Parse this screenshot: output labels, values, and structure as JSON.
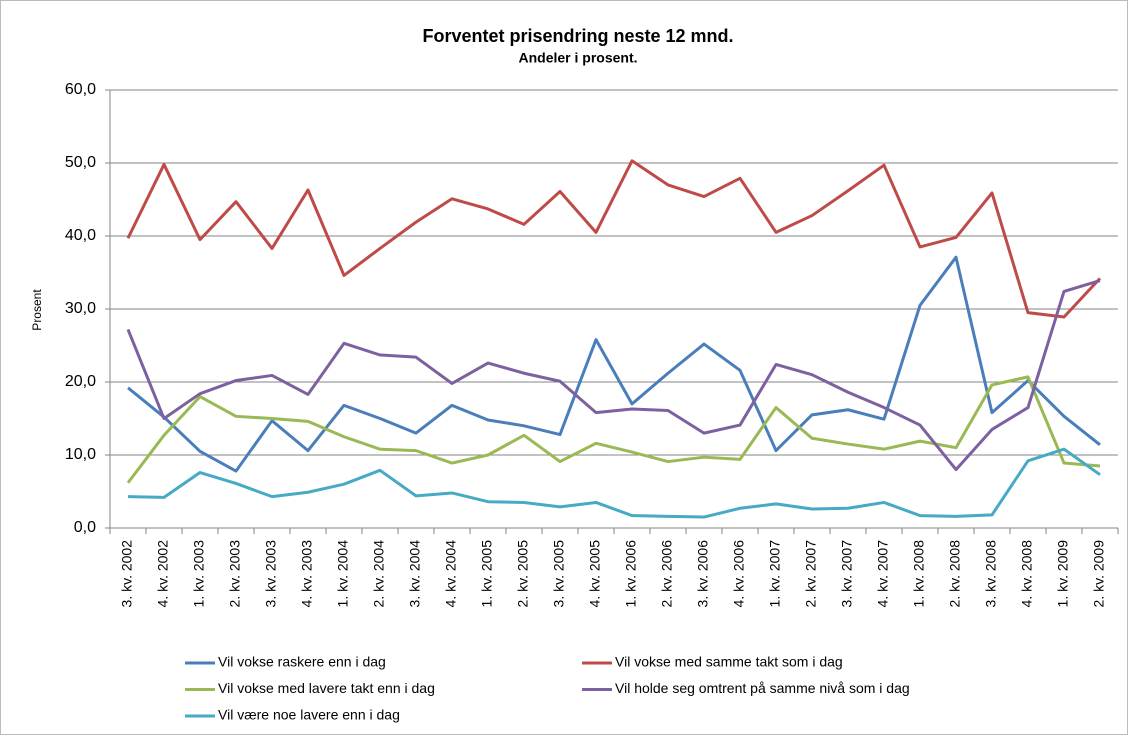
{
  "chart_data": {
    "type": "line",
    "title": "Forventet prisendring neste 12 mnd.",
    "subtitle": "Andeler i prosent.",
    "y_label": "Prosent",
    "categories": [
      "3. kv. 2002",
      "4. kv. 2002",
      "1. kv. 2003",
      "2. kv. 2003",
      "3. kv. 2003",
      "4. kv. 2003",
      "1. kv. 2004",
      "2. kv. 2004",
      "3. kv. 2004",
      "4. kv. 2004",
      "1. kv. 2005",
      "2. kv. 2005",
      "3. kv. 2005",
      "4. kv. 2005",
      "1. kv. 2006",
      "2. kv. 2006",
      "3. kv. 2006",
      "4. kv. 2006",
      "1. kv. 2007",
      "2. kv. 2007",
      "3. kv. 2007",
      "4. kv. 2007",
      "1. kv. 2008",
      "2. kv. 2008",
      "3. kv. 2008",
      "4. kv. 2008",
      "1. kv. 2009",
      "2. kv. 2009"
    ],
    "series": [
      {
        "name": "Vil vokse raskere enn i dag",
        "color": "#4a7ebb",
        "values": [
          19.2,
          15.2,
          10.5,
          7.8,
          14.7,
          10.6,
          16.8,
          15.0,
          13.0,
          16.8,
          14.8,
          14.0,
          12.8,
          25.8,
          17.0,
          21.2,
          25.2,
          21.6,
          10.6,
          15.5,
          16.2,
          14.9,
          30.5,
          37.1,
          15.8,
          20.2,
          15.3,
          11.4
        ]
      },
      {
        "name": "Vil vokse med samme takt som i dag",
        "color": "#be4b48",
        "values": [
          39.7,
          49.8,
          39.5,
          44.7,
          38.3,
          46.3,
          34.6,
          38.3,
          41.9,
          45.1,
          43.7,
          41.6,
          46.1,
          40.5,
          50.3,
          47.0,
          45.4,
          47.9,
          40.5,
          42.8,
          46.2,
          49.7,
          38.5,
          39.8,
          45.9,
          29.5,
          28.9,
          34.2
        ]
      },
      {
        "name": "Vil vokse med lavere takt enn i dag",
        "color": "#98b954",
        "values": [
          6.2,
          12.7,
          18.0,
          15.3,
          15.0,
          14.6,
          12.5,
          10.8,
          10.6,
          8.9,
          10.0,
          12.7,
          9.1,
          11.6,
          10.4,
          9.1,
          9.7,
          9.4,
          16.5,
          12.3,
          11.5,
          10.8,
          11.9,
          11.0,
          19.6,
          20.7,
          8.9,
          8.5
        ]
      },
      {
        "name": "Vil holde seg omtrent på samme nivå som i dag",
        "color": "#7d60a0",
        "values": [
          27.2,
          15.0,
          18.4,
          20.2,
          20.9,
          18.3,
          25.3,
          23.7,
          23.4,
          19.8,
          22.6,
          21.2,
          20.1,
          15.8,
          16.3,
          16.1,
          13.0,
          14.1,
          22.4,
          21.0,
          18.6,
          16.5,
          14.1,
          8.0,
          13.5,
          16.5,
          32.4,
          33.9
        ]
      },
      {
        "name": "Vil være noe lavere enn i dag",
        "color": "#46aac5",
        "values": [
          4.3,
          4.2,
          7.6,
          6.1,
          4.3,
          4.9,
          6.0,
          7.9,
          4.4,
          4.8,
          3.6,
          3.5,
          2.9,
          3.5,
          1.7,
          1.6,
          1.5,
          2.7,
          3.3,
          2.6,
          2.7,
          3.5,
          1.7,
          1.6,
          1.8,
          9.2,
          10.8,
          7.3
        ]
      }
    ],
    "ylim": [
      0,
      60
    ],
    "yticks": [
      {
        "value": 0,
        "label": "0,0"
      },
      {
        "value": 10,
        "label": "10,0"
      },
      {
        "value": 20,
        "label": "20,0"
      },
      {
        "value": 30,
        "label": "30,0"
      },
      {
        "value": 40,
        "label": "40,0"
      },
      {
        "value": 50,
        "label": "50,0"
      },
      {
        "value": 60,
        "label": "60,0"
      }
    ],
    "grid": true
  }
}
